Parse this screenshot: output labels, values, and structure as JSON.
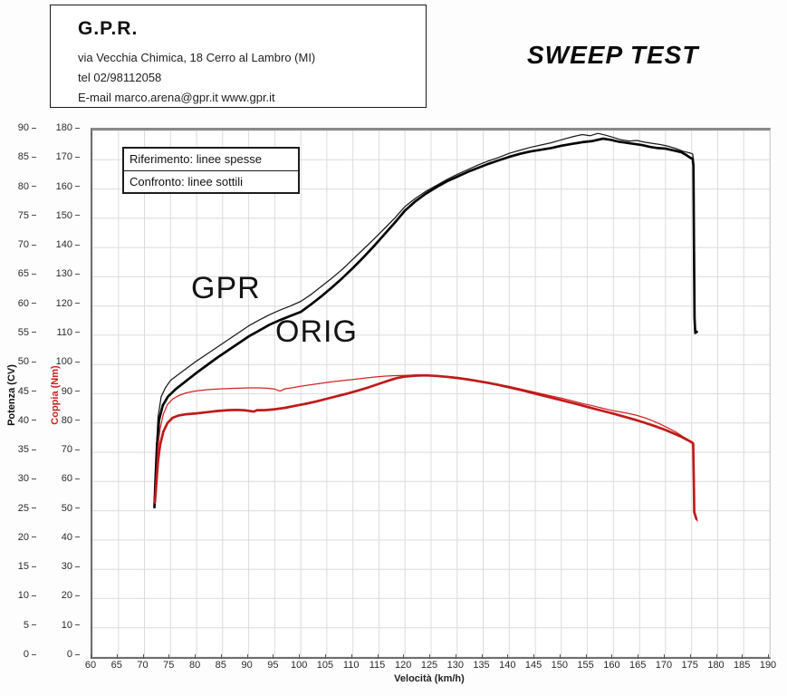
{
  "header": {
    "company": "G.P.R.",
    "address": "via Vecchia Chimica, 18 Cerro al Lambro (MI)",
    "phone": "tel 02/98112058",
    "email_line": "E-mail marco.arena@gpr.it  www.gpr.it"
  },
  "title": "SWEEP TEST",
  "legend": {
    "row1": "Riferimento: linee spesse",
    "row2": "Confronto: linee sottili"
  },
  "curve_labels": {
    "gpr": "GPR",
    "orig": "ORIG"
  },
  "axes": {
    "x_label": "Velocità (km/h)",
    "y_power_label": "Potenza (CV)",
    "y_torque_label": "Coppia (Nm)",
    "x_ticks": [
      60,
      65,
      70,
      75,
      80,
      85,
      90,
      95,
      100,
      105,
      110,
      115,
      120,
      125,
      130,
      135,
      140,
      145,
      150,
      155,
      160,
      165,
      170,
      175,
      180,
      185,
      190
    ],
    "power_ticks": [
      0,
      5,
      10,
      15,
      20,
      25,
      30,
      35,
      40,
      45,
      50,
      55,
      60,
      65,
      70,
      75,
      80,
      85,
      90
    ],
    "torque_ticks": [
      0,
      10,
      20,
      30,
      40,
      50,
      60,
      70,
      80,
      90,
      100,
      110,
      120,
      130,
      140,
      150,
      160,
      170,
      180
    ]
  },
  "colors": {
    "power_line": "#0d0d0d",
    "torque_line": "#c81e1e",
    "grid": "#dcdcdc",
    "plot_border": "#8a8a8a"
  },
  "chart_data": {
    "type": "line",
    "title": "SWEEP TEST",
    "xlabel": "Velocità (km/h)",
    "ylabel_left": "Potenza (CV)",
    "ylabel_right": "Coppia (Nm)",
    "x_range": [
      60,
      190
    ],
    "power_range": [
      0,
      90
    ],
    "torque_range": [
      0,
      180
    ],
    "grid": true,
    "legend_note": "Riferimento: linee spesse (ORIG) / Confronto: linee sottili (GPR)",
    "series": [
      {
        "id": "gpr-power",
        "name": "GPR potenza (linea sottile)",
        "axis": "power",
        "style": "thin",
        "color": "#1a1a1a",
        "points": [
          [
            71.9,
            25.6
          ],
          [
            72.0,
            27.0
          ],
          [
            72.1,
            30.0
          ],
          [
            72.3,
            36.0
          ],
          [
            72.6,
            41.0
          ],
          [
            73.2,
            44.5
          ],
          [
            74,
            46.0
          ],
          [
            75,
            47.3
          ],
          [
            76.5,
            48.3
          ],
          [
            78,
            49.3
          ],
          [
            80,
            50.6
          ],
          [
            82,
            51.8
          ],
          [
            84,
            53.0
          ],
          [
            86,
            54.2
          ],
          [
            88,
            55.4
          ],
          [
            90,
            56.6
          ],
          [
            92,
            57.6
          ],
          [
            94,
            58.5
          ],
          [
            96,
            59.3
          ],
          [
            98,
            60.0
          ],
          [
            100,
            60.8
          ],
          [
            102,
            62.0
          ],
          [
            104,
            63.4
          ],
          [
            106,
            64.8
          ],
          [
            108,
            66.3
          ],
          [
            110,
            68.0
          ],
          [
            112,
            69.7
          ],
          [
            114,
            71.4
          ],
          [
            116,
            73.2
          ],
          [
            118,
            75.0
          ],
          [
            120,
            77.0
          ],
          [
            122,
            78.4
          ],
          [
            124,
            79.6
          ],
          [
            126,
            80.6
          ],
          [
            128,
            81.6
          ],
          [
            130,
            82.5
          ],
          [
            132,
            83.3
          ],
          [
            134,
            84.1
          ],
          [
            136,
            84.8
          ],
          [
            138,
            85.4
          ],
          [
            140,
            86.1
          ],
          [
            142,
            86.6
          ],
          [
            144,
            87.1
          ],
          [
            146,
            87.5
          ],
          [
            148,
            87.9
          ],
          [
            150,
            88.4
          ],
          [
            152,
            88.9
          ],
          [
            154,
            89.3
          ],
          [
            155.5,
            89.1
          ],
          [
            157,
            89.5
          ],
          [
            158.5,
            89.2
          ],
          [
            160,
            88.8
          ],
          [
            161.5,
            88.4
          ],
          [
            163,
            88.2
          ],
          [
            164.5,
            88.3
          ],
          [
            166,
            88.0
          ],
          [
            167.5,
            87.8
          ],
          [
            169,
            87.6
          ],
          [
            170.5,
            87.3
          ],
          [
            172,
            86.9
          ],
          [
            173.5,
            86.4
          ],
          [
            174.5,
            86.2
          ],
          [
            175.2,
            86.0
          ],
          [
            175.35,
            85.0
          ],
          [
            175.45,
            72.0
          ],
          [
            175.55,
            60.0
          ],
          [
            175.7,
            55.8
          ]
        ]
      },
      {
        "id": "orig-power",
        "name": "ORIG potenza (linea spessa)",
        "axis": "power",
        "style": "thick",
        "color": "#050505",
        "points": [
          [
            71.9,
            25.6
          ],
          [
            72.0,
            27.5
          ],
          [
            72.15,
            31.0
          ],
          [
            72.4,
            36.0
          ],
          [
            72.8,
            40.5
          ],
          [
            73.5,
            43.0
          ],
          [
            74.5,
            44.5
          ],
          [
            76,
            45.8
          ],
          [
            78,
            47.2
          ],
          [
            80,
            48.6
          ],
          [
            82,
            49.9
          ],
          [
            84,
            51.2
          ],
          [
            86,
            52.4
          ],
          [
            88,
            53.6
          ],
          [
            90,
            54.8
          ],
          [
            92,
            55.8
          ],
          [
            94,
            56.8
          ],
          [
            96,
            57.6
          ],
          [
            98,
            58.3
          ],
          [
            100,
            59.0
          ],
          [
            102,
            60.3
          ],
          [
            104,
            61.7
          ],
          [
            106,
            63.2
          ],
          [
            108,
            64.8
          ],
          [
            110,
            66.5
          ],
          [
            112,
            68.3
          ],
          [
            114,
            70.2
          ],
          [
            116,
            72.2
          ],
          [
            118,
            74.2
          ],
          [
            120,
            76.3
          ],
          [
            122,
            77.9
          ],
          [
            124,
            79.2
          ],
          [
            126,
            80.3
          ],
          [
            128,
            81.3
          ],
          [
            130,
            82.1
          ],
          [
            132,
            82.9
          ],
          [
            134,
            83.6
          ],
          [
            136,
            84.3
          ],
          [
            138,
            84.9
          ],
          [
            140,
            85.5
          ],
          [
            142,
            86.0
          ],
          [
            144,
            86.4
          ],
          [
            146,
            86.7
          ],
          [
            148,
            87.0
          ],
          [
            150,
            87.4
          ],
          [
            152,
            87.7
          ],
          [
            154,
            88.0
          ],
          [
            156,
            88.2
          ],
          [
            158,
            88.6
          ],
          [
            159.5,
            88.4
          ],
          [
            161,
            88.1
          ],
          [
            162.5,
            87.9
          ],
          [
            164,
            87.7
          ],
          [
            165.5,
            87.5
          ],
          [
            167,
            87.2
          ],
          [
            168.5,
            87.0
          ],
          [
            170,
            86.9
          ],
          [
            171.5,
            86.6
          ],
          [
            173,
            86.3
          ],
          [
            174,
            85.8
          ],
          [
            174.8,
            85.3
          ],
          [
            175.2,
            85.2
          ],
          [
            175.35,
            84.0
          ],
          [
            175.45,
            70.0
          ],
          [
            175.55,
            58.0
          ],
          [
            175.7,
            55.4
          ],
          [
            176,
            55.6
          ]
        ]
      },
      {
        "id": "gpr-torque",
        "name": "GPR coppia (linea sottile)",
        "axis": "torque",
        "style": "thin",
        "color": "#d22424",
        "points": [
          [
            72,
            52.8
          ],
          [
            72.1,
            56
          ],
          [
            72.3,
            63
          ],
          [
            72.6,
            72
          ],
          [
            73,
            78
          ],
          [
            73.6,
            83
          ],
          [
            74.4,
            86.3
          ],
          [
            75.4,
            88.2
          ],
          [
            76.6,
            89.4
          ],
          [
            78,
            90.3
          ],
          [
            80,
            91.0
          ],
          [
            82,
            91.4
          ],
          [
            84,
            91.6
          ],
          [
            86,
            91.8
          ],
          [
            88,
            91.9
          ],
          [
            90,
            92.0
          ],
          [
            92,
            92.0
          ],
          [
            93.5,
            91.9
          ],
          [
            95,
            91.6
          ],
          [
            96,
            90.9
          ],
          [
            97,
            91.7
          ],
          [
            98.5,
            92.1
          ],
          [
            100,
            92.6
          ],
          [
            102,
            93.1
          ],
          [
            104,
            93.6
          ],
          [
            106,
            94.1
          ],
          [
            108,
            94.5
          ],
          [
            110,
            94.9
          ],
          [
            112,
            95.3
          ],
          [
            114,
            95.7
          ],
          [
            116,
            96.0
          ],
          [
            118,
            96.2
          ],
          [
            120,
            96.3
          ],
          [
            122,
            96.4
          ],
          [
            124,
            96.4
          ],
          [
            126,
            96.2
          ],
          [
            128,
            95.9
          ],
          [
            130,
            95.6
          ],
          [
            132,
            95.1
          ],
          [
            134,
            94.5
          ],
          [
            136,
            93.9
          ],
          [
            138,
            93.2
          ],
          [
            140,
            92.5
          ],
          [
            142,
            91.7
          ],
          [
            144,
            90.9
          ],
          [
            146,
            90.1
          ],
          [
            148,
            89.3
          ],
          [
            150,
            88.5
          ],
          [
            152,
            87.6
          ],
          [
            154,
            86.7
          ],
          [
            156,
            85.9
          ],
          [
            158,
            85.0
          ],
          [
            160,
            84.2
          ],
          [
            161.5,
            83.7
          ],
          [
            163,
            83.2
          ],
          [
            164.5,
            82.6
          ],
          [
            166,
            81.8
          ],
          [
            167.5,
            80.8
          ],
          [
            169,
            79.6
          ],
          [
            170.5,
            78.3
          ],
          [
            172,
            76.9
          ],
          [
            173.3,
            75.4
          ],
          [
            174.3,
            74.3
          ],
          [
            175.1,
            73.6
          ],
          [
            175.3,
            72.5
          ],
          [
            175.4,
            60.0
          ],
          [
            175.5,
            49.0
          ],
          [
            175.8,
            47.8
          ],
          [
            176.1,
            46.5
          ]
        ]
      },
      {
        "id": "orig-torque",
        "name": "ORIG coppia (linea spessa)",
        "axis": "torque",
        "style": "thick",
        "color": "#c01a1a",
        "points": [
          [
            72,
            52.8
          ],
          [
            72.1,
            55
          ],
          [
            72.3,
            60
          ],
          [
            72.6,
            67
          ],
          [
            73,
            72.5
          ],
          [
            73.6,
            77
          ],
          [
            74.4,
            80
          ],
          [
            75.4,
            81.8
          ],
          [
            76.6,
            82.6
          ],
          [
            78,
            83.0
          ],
          [
            80,
            83.3
          ],
          [
            82,
            83.7
          ],
          [
            84,
            84.1
          ],
          [
            86,
            84.4
          ],
          [
            88,
            84.5
          ],
          [
            89.5,
            84.3
          ],
          [
            91,
            83.9
          ],
          [
            91.6,
            84.4
          ],
          [
            93,
            84.4
          ],
          [
            95,
            84.7
          ],
          [
            97,
            85.2
          ],
          [
            99,
            85.9
          ],
          [
            101,
            86.6
          ],
          [
            103,
            87.4
          ],
          [
            105,
            88.3
          ],
          [
            107,
            89.2
          ],
          [
            109,
            90.1
          ],
          [
            111,
            91.1
          ],
          [
            113,
            92.2
          ],
          [
            115,
            93.4
          ],
          [
            117,
            94.6
          ],
          [
            118.5,
            95.4
          ],
          [
            120,
            95.9
          ],
          [
            122,
            96.2
          ],
          [
            124,
            96.3
          ],
          [
            126,
            96.1
          ],
          [
            128,
            95.8
          ],
          [
            130,
            95.4
          ],
          [
            132,
            94.9
          ],
          [
            134,
            94.3
          ],
          [
            136,
            93.7
          ],
          [
            138,
            93.0
          ],
          [
            140,
            92.2
          ],
          [
            142,
            91.4
          ],
          [
            144,
            90.5
          ],
          [
            146,
            89.6
          ],
          [
            148,
            88.7
          ],
          [
            150,
            87.8
          ],
          [
            152,
            86.9
          ],
          [
            154,
            86.0
          ],
          [
            156,
            85.0
          ],
          [
            158,
            84.1
          ],
          [
            160,
            83.2
          ],
          [
            162,
            82.2
          ],
          [
            164,
            81.2
          ],
          [
            166,
            80.1
          ],
          [
            168,
            78.9
          ],
          [
            170,
            77.6
          ],
          [
            171.5,
            76.5
          ],
          [
            173,
            75.3
          ],
          [
            174.2,
            74.2
          ],
          [
            175,
            73.4
          ],
          [
            175.3,
            73.0
          ],
          [
            175.4,
            62.0
          ],
          [
            175.5,
            49.5
          ],
          [
            175.9,
            47.2
          ]
        ]
      }
    ]
  }
}
